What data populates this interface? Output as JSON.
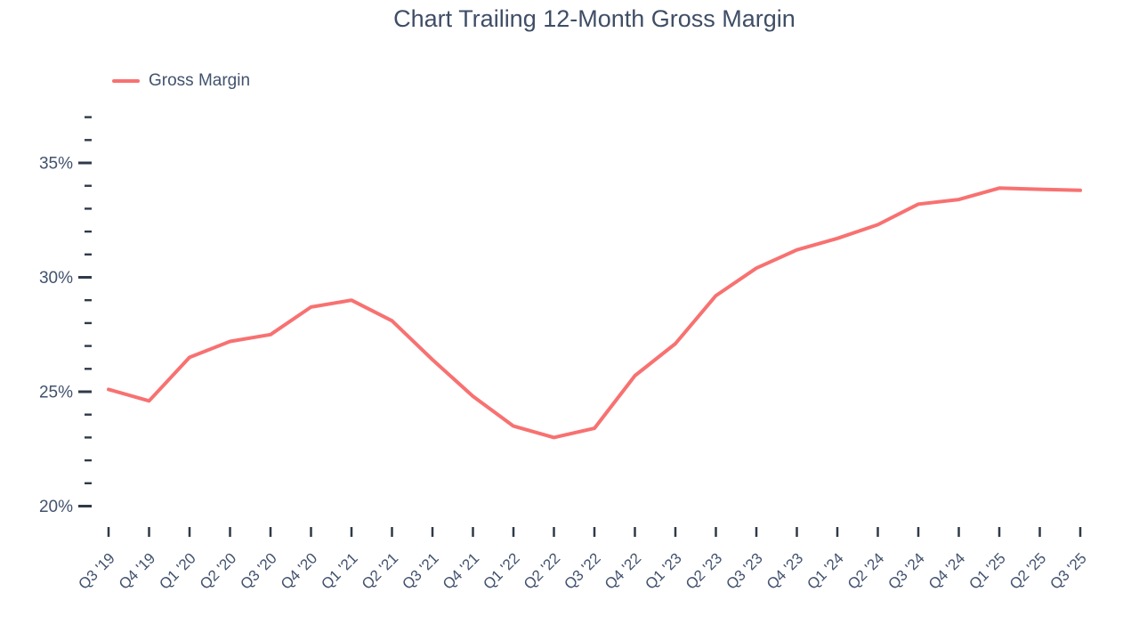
{
  "chart_data": {
    "type": "line",
    "title": "Chart Trailing 12-Month Gross Margin",
    "categories": [
      "Q3 '19",
      "Q4 '19",
      "Q1 '20",
      "Q2 '20",
      "Q3 '20",
      "Q4 '20",
      "Q1 '21",
      "Q2 '21",
      "Q3 '21",
      "Q4 '21",
      "Q1 '22",
      "Q2 '22",
      "Q3 '22",
      "Q4 '22",
      "Q1 '23",
      "Q2 '23",
      "Q3 '23",
      "Q4 '23",
      "Q1 '24",
      "Q2 '24",
      "Q3 '24",
      "Q4 '24",
      "Q1 '25",
      "Q2 '25",
      "Q3 '25"
    ],
    "series": [
      {
        "name": "Gross Margin",
        "color": "#f87171",
        "values": [
          25.1,
          24.6,
          26.5,
          27.2,
          27.5,
          28.7,
          29.0,
          28.1,
          26.4,
          24.8,
          23.5,
          23.0,
          23.4,
          25.7,
          27.1,
          29.2,
          30.4,
          31.2,
          31.7,
          32.3,
          33.2,
          33.4,
          33.9,
          33.85,
          33.8
        ]
      }
    ],
    "xlabel": "",
    "ylabel": "",
    "ylim": [
      20,
      37
    ],
    "y_major_ticks": [
      {
        "value": 20,
        "label": "20%"
      },
      {
        "value": 25,
        "label": "25%"
      },
      {
        "value": 30,
        "label": "30%"
      },
      {
        "value": 35,
        "label": "35%"
      }
    ],
    "y_minor_step": 1,
    "grid": false,
    "legend_position": "top-left",
    "text_color": "#42526e",
    "tick_color": "#2f3a48",
    "background": "#ffffff"
  }
}
